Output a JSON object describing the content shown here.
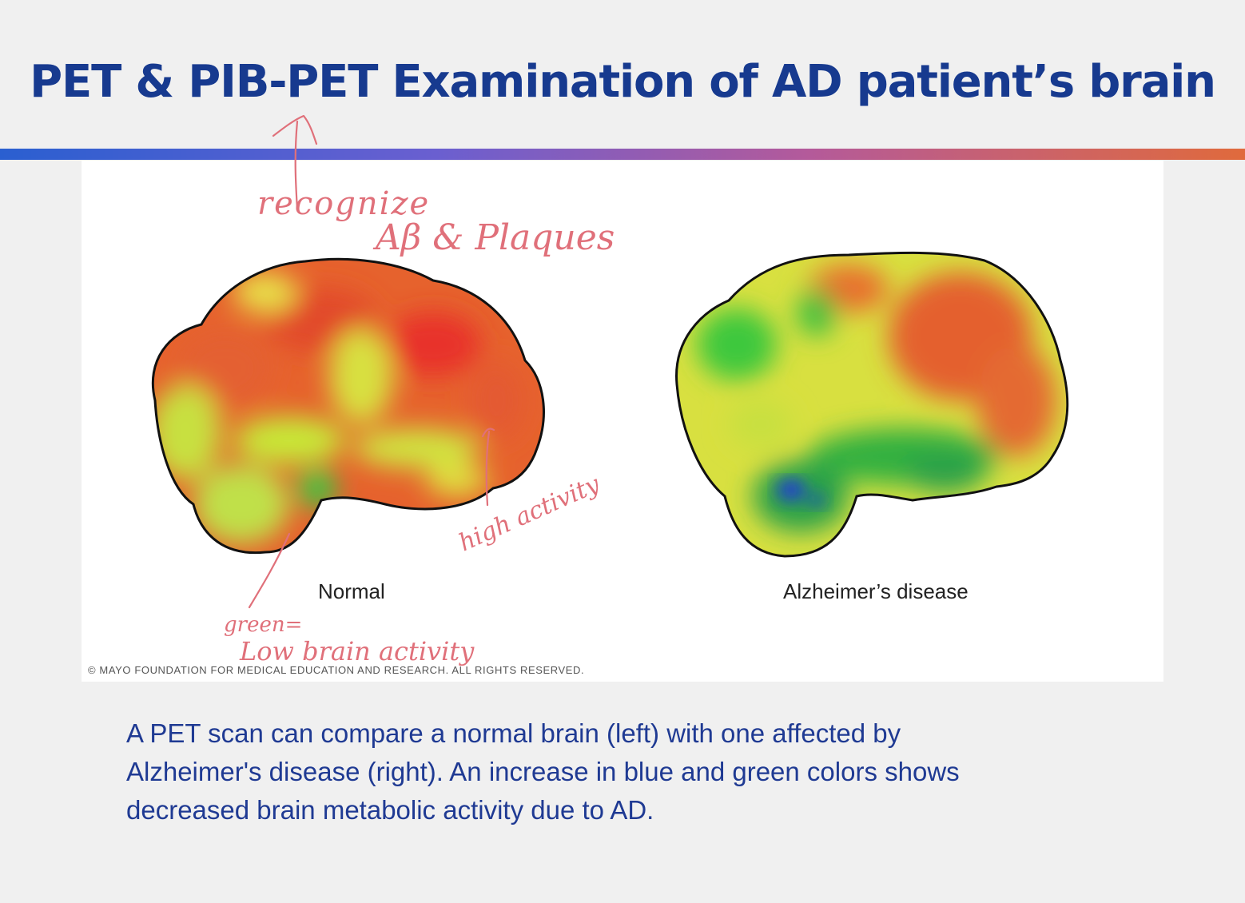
{
  "slide": {
    "title": "PET & PIB-PET Examination of AD patient’s brain"
  },
  "figure": {
    "left_label": "Normal",
    "right_label": "Alzheimer’s disease",
    "credit": "© MAYO FOUNDATION FOR MEDICAL EDUCATION AND RESEARCH. ALL RIGHTS RESERVED."
  },
  "annotations": {
    "note_top": "recognize Aβ & Plaques",
    "note_high": "high activity",
    "note_low": "green = Low brain activity",
    "ink_color": "#e0707a"
  },
  "caption": {
    "line1": "A PET scan can compare a normal brain (left) with one affected by",
    "line2": "Alzheimer's disease (right). An increase in blue and green colors shows",
    "line3": "decreased brain metabolic activity due to AD."
  },
  "colors": {
    "title": "#173a8f",
    "caption": "#1f3a93",
    "high_activity": "#e8452a",
    "mid_activity": "#c8e838",
    "low_activity": "#3cc83c",
    "very_low_activity": "#2040d0"
  }
}
